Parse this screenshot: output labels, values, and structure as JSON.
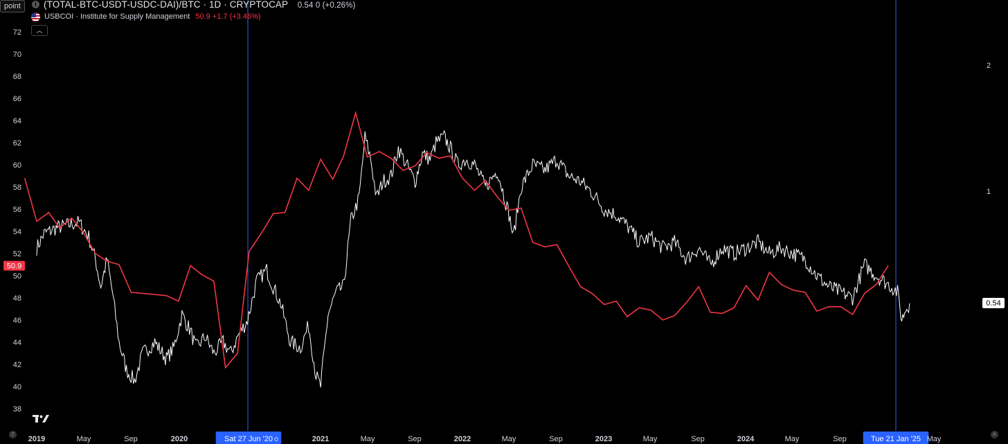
{
  "header": {
    "mode_button": "point",
    "main_title": "(TOTAL-BTC-USDT-USDC-DAI)/BTC · 1D · CRYPTOCAP",
    "main_value": "0.54 0 (+0.26%)",
    "series2_name": "USBCOI · Institute for Supply Management",
    "series2_value": "50.9 +1.7 (+3.46%)",
    "collapse_icon": "chevron-up-icon"
  },
  "colors": {
    "background": "#000000",
    "ism_line": "#f23645",
    "ratio_line": "#ffffff",
    "crosshair": "#2962ff"
  },
  "chart_data": {
    "type": "line",
    "left_axis": {
      "ticks": [
        38,
        40,
        42,
        44,
        46,
        48,
        50,
        52,
        54,
        56,
        58,
        60,
        62,
        64,
        66,
        68,
        70,
        72
      ],
      "range": [
        37,
        73.5
      ]
    },
    "right_axis": {
      "ticks": [
        "2",
        "1"
      ]
    },
    "x_axis": {
      "labels": [
        "2019",
        "May",
        "Sep",
        "2020",
        "Sat 27 Jun '20",
        "o",
        "2021",
        "May",
        "Sep",
        "2022",
        "May",
        "Sep",
        "2023",
        "May",
        "Sep",
        "2024",
        "May",
        "Sep",
        "Tue 21 Jan '25",
        "May"
      ]
    },
    "crosshairs": [
      "Sat 27 Jun '20",
      "Tue 21 Jan '25"
    ],
    "last_value_labels": {
      "ism": "50.9",
      "ratio": "0.54"
    },
    "series": [
      {
        "name": "USBCOI · Institute for Supply Management",
        "axis": "left",
        "x": [
          "2018-12",
          "2019-01",
          "2019-02",
          "2019-03",
          "2019-04",
          "2019-05",
          "2019-06",
          "2019-07",
          "2019-08",
          "2019-09",
          "2019-10",
          "2019-11",
          "2019-12",
          "2020-01",
          "2020-02",
          "2020-03",
          "2020-04",
          "2020-05",
          "2020-06",
          "2020-07",
          "2020-08",
          "2020-09",
          "2020-10",
          "2020-11",
          "2020-12",
          "2021-01",
          "2021-02",
          "2021-03",
          "2021-04",
          "2021-05",
          "2021-06",
          "2021-07",
          "2021-08",
          "2021-09",
          "2021-10",
          "2021-11",
          "2021-12",
          "2022-01",
          "2022-02",
          "2022-03",
          "2022-04",
          "2022-05",
          "2022-06",
          "2022-07",
          "2022-08",
          "2022-09",
          "2022-10",
          "2022-11",
          "2022-12",
          "2023-01",
          "2023-02",
          "2023-03",
          "2023-04",
          "2023-05",
          "2023-06",
          "2023-07",
          "2023-08",
          "2023-09",
          "2023-10",
          "2023-11",
          "2023-12",
          "2024-01",
          "2024-02",
          "2024-03",
          "2024-04",
          "2024-05",
          "2024-06",
          "2024-07",
          "2024-08",
          "2024-09",
          "2024-10",
          "2024-11",
          "2024-12",
          "2025-01"
        ],
        "values": [
          58.8,
          54.9,
          55.7,
          54.3,
          55.2,
          53.9,
          52.0,
          51.3,
          51.0,
          48.5,
          48.4,
          48.3,
          48.2,
          47.7,
          50.9,
          50.1,
          49.5,
          41.7,
          43.0,
          52.2,
          53.8,
          55.6,
          55.7,
          58.8,
          57.7,
          60.5,
          58.7,
          60.8,
          64.7,
          60.7,
          61.2,
          60.6,
          59.5,
          59.9,
          61.1,
          60.6,
          60.8,
          58.8,
          57.7,
          58.6,
          57.1,
          55.9,
          56.1,
          53.0,
          52.6,
          52.8,
          50.9,
          49.0,
          48.4,
          47.4,
          47.7,
          46.3,
          47.1,
          46.9,
          46.0,
          46.4,
          47.6,
          49.0,
          46.7,
          46.6,
          47.1,
          49.1,
          47.8,
          50.3,
          49.2,
          48.7,
          48.5,
          46.8,
          47.2,
          47.2,
          46.5,
          48.4,
          49.2,
          50.9
        ]
      },
      {
        "name": "(TOTAL-BTC-USDT-USDC-DAI)/BTC",
        "axis": "left",
        "x": [
          "2019-01-01",
          "2019-01-20",
          "2019-02-20",
          "2019-03-25",
          "2019-04-20",
          "2019-05-15",
          "2019-06-01",
          "2019-06-15",
          "2019-07-01",
          "2019-07-15",
          "2019-08-01",
          "2019-08-20",
          "2019-09-10",
          "2019-10-01",
          "2019-11-01",
          "2019-12-01",
          "2019-12-20",
          "2020-01-10",
          "2020-02-01",
          "2020-02-15",
          "2020-03-10",
          "2020-04-01",
          "2020-04-25",
          "2020-05-15",
          "2020-06-01",
          "2020-06-27",
          "2020-07-20",
          "2020-08-15",
          "2020-09-01",
          "2020-09-20",
          "2020-10-15",
          "2020-11-10",
          "2020-12-01",
          "2020-12-20",
          "2021-01-01",
          "2021-01-20",
          "2021-02-10",
          "2021-03-01",
          "2021-03-20",
          "2021-04-10",
          "2021-04-25",
          "2021-05-10",
          "2021-05-25",
          "2021-06-10",
          "2021-07-01",
          "2021-07-20",
          "2021-08-10",
          "2021-09-01",
          "2021-09-20",
          "2021-10-10",
          "2021-10-25",
          "2021-11-15",
          "2021-12-01",
          "2021-12-20",
          "2022-01-10",
          "2022-02-01",
          "2022-03-01",
          "2022-04-01",
          "2022-05-01",
          "2022-05-12",
          "2022-06-01",
          "2022-07-01",
          "2022-08-01",
          "2022-09-01",
          "2022-10-01",
          "2022-11-01",
          "2022-12-01",
          "2023-01-01",
          "2023-02-01",
          "2023-03-01",
          "2023-04-01",
          "2023-05-01",
          "2023-06-01",
          "2023-07-01",
          "2023-08-01",
          "2023-09-01",
          "2023-10-01",
          "2023-11-01",
          "2023-12-01",
          "2024-01-01",
          "2024-02-01",
          "2024-03-01",
          "2024-04-01",
          "2024-05-01",
          "2024-06-01",
          "2024-07-01",
          "2024-08-01",
          "2024-09-01",
          "2024-10-01",
          "2024-11-01",
          "2024-12-01",
          "2025-01-10",
          "2025-01-25",
          "2025-02-05",
          "2025-02-15",
          "2025-02-25"
        ],
        "values": [
          52.5,
          53.8,
          54.3,
          54.6,
          54.8,
          53.5,
          51.5,
          49.0,
          51.5,
          48.5,
          44.0,
          41.5,
          40.5,
          43.0,
          44.0,
          42.5,
          43.5,
          46.5,
          45.0,
          43.5,
          44.5,
          43.0,
          44.0,
          43.0,
          44.5,
          46.0,
          49.5,
          50.5,
          49.0,
          47.5,
          44.0,
          43.5,
          45.5,
          41.0,
          40.0,
          46.5,
          48.5,
          49.0,
          55.0,
          57.0,
          62.5,
          60.5,
          57.0,
          58.5,
          59.0,
          61.5,
          60.0,
          58.5,
          61.0,
          60.5,
          62.0,
          62.5,
          61.5,
          60.0,
          60.5,
          60.0,
          58.0,
          59.5,
          55.5,
          53.5,
          58.0,
          60.0,
          59.5,
          60.5,
          59.0,
          58.5,
          57.5,
          56.0,
          55.5,
          54.5,
          53.0,
          53.5,
          52.5,
          53.0,
          51.5,
          52.5,
          51.0,
          52.5,
          52.0,
          52.5,
          53.0,
          52.0,
          52.5,
          52.0,
          51.5,
          50.0,
          49.0,
          48.5,
          48.0,
          51.0,
          50.0,
          49.0,
          48.5,
          46.0,
          47.0,
          47.5
        ]
      }
    ]
  }
}
